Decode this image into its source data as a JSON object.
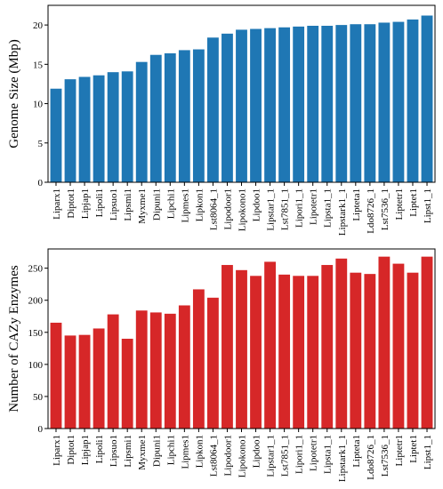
{
  "chart_data": [
    {
      "type": "bar",
      "title": "",
      "xlabel": "",
      "ylabel": "Genome Size (Mbp)",
      "ylim": [
        0,
        22.5
      ],
      "yticks": [
        0,
        5,
        10,
        15,
        20
      ],
      "grid": false,
      "bar_color": "#1f77b4",
      "categories": [
        "Liparx1",
        "Diptot1",
        "Lipjap1",
        "Lipoli1",
        "Lipsuo1",
        "Lipsmi1",
        "Myxme1",
        "Dipuni1",
        "Lipchi1",
        "Lipmes1",
        "Lipkon1",
        "Lst8064_1",
        "Lipodoor1",
        "Lipokono1",
        "Lipdoo1",
        "Lipstar1_1",
        "Lst7851_1",
        "Lipori1_1",
        "Lipotetr1",
        "Lipsta1_1",
        "Lipstark1_1",
        "Lipteta1",
        "Ldo8726_1",
        "Lst7536_1",
        "Liptetr1",
        "Liptet1",
        "Lipst1_1"
      ],
      "values": [
        11.9,
        13.1,
        13.4,
        13.6,
        14.0,
        14.1,
        15.3,
        16.2,
        16.4,
        16.8,
        16.9,
        18.4,
        18.9,
        19.4,
        19.5,
        19.6,
        19.7,
        19.8,
        19.9,
        19.9,
        20.0,
        20.1,
        20.1,
        20.3,
        20.4,
        20.7,
        21.2
      ]
    },
    {
      "type": "bar",
      "title": "",
      "xlabel": "",
      "ylabel": "Number of CAZy Enzymes",
      "ylim": [
        0,
        280
      ],
      "yticks": [
        0,
        50,
        100,
        150,
        200,
        250
      ],
      "grid": false,
      "bar_color": "#d62728",
      "categories": [
        "Liparx1",
        "Diptot1",
        "Lipjap1",
        "Lipoli1",
        "Lipsuo1",
        "Lipsmi1",
        "Myxme1",
        "Dipuni1",
        "Lipchi1",
        "Lipmes1",
        "Lipkon1",
        "Lst8064_1",
        "Lipodoor1",
        "Lipokono1",
        "Lipdoo1",
        "Lipstar1_1",
        "Lst7851_1",
        "Lipori1_1",
        "Lipotetr1",
        "Lipsta1_1",
        "Lipstark1_1",
        "Lipteta1",
        "Ldo8726_1",
        "Lst7536_1",
        "Liptetr1",
        "Liptet1",
        "Lipst1_1"
      ],
      "values": [
        165,
        145,
        146,
        156,
        178,
        140,
        184,
        181,
        179,
        192,
        217,
        204,
        255,
        247,
        238,
        260,
        240,
        238,
        238,
        255,
        265,
        243,
        241,
        268,
        257,
        243,
        268
      ]
    }
  ]
}
